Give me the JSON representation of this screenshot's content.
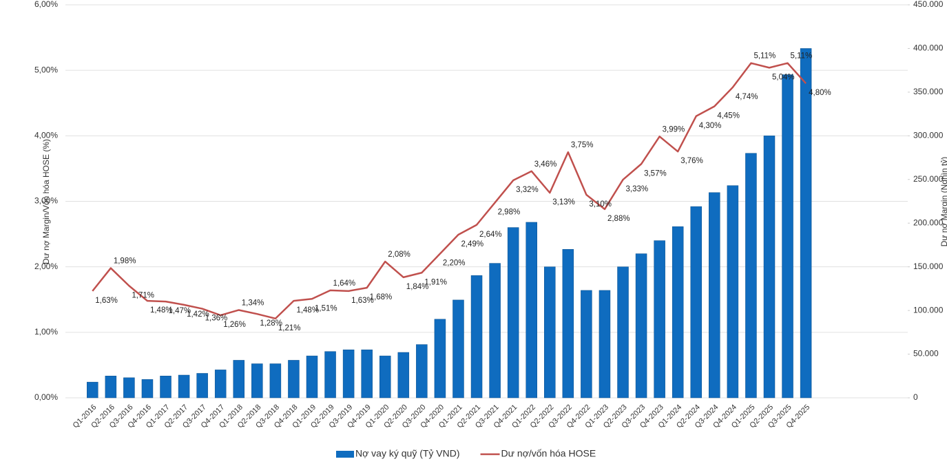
{
  "chart_data": {
    "type": "combo",
    "y_label": "Dư nợ Margin/Vốn hóa HOSE (%)",
    "y2_label": "Dư nợ Margin (Nghìn tỷ)",
    "categories": [
      "Q1-2016",
      "Q2-2016",
      "Q3-2016",
      "Q4-2016",
      "Q1-2017",
      "Q2-2017",
      "Q3-2017",
      "Q4-2017",
      "Q1-2018",
      "Q2-2018",
      "Q3-2018",
      "Q4-2018",
      "Q1-2019",
      "Q2-2019",
      "Q3-2019",
      "Q4-2019",
      "Q1-2020",
      "Q2-2020",
      "Q3-2020",
      "Q4-2020",
      "Q1-2021",
      "Q2-2021",
      "Q3-2021",
      "Q4-2021",
      "Q1-2022",
      "Q2-2022",
      "Q3-2022",
      "Q4-2022",
      "Q1-2023",
      "Q2-2023",
      "Q3-2023",
      "Q4-2023",
      "Q1-2024",
      "Q2-2024",
      "Q3-2024",
      "Q4-2024",
      "Q1-2025",
      "Q2-2025",
      "Q3-2025",
      "Q4-2025"
    ],
    "series": [
      {
        "name": "Nợ vay ký quỹ (Tỷ VND)",
        "type": "bar",
        "axis": "y2",
        "color": "#0f6cbf",
        "values": [
          18000,
          25000,
          23000,
          21000,
          25000,
          26000,
          28000,
          32000,
          43000,
          39000,
          39000,
          43000,
          48000,
          53000,
          55000,
          55000,
          48000,
          52000,
          61000,
          90000,
          112000,
          140000,
          154000,
          195000,
          201000,
          150000,
          170000,
          123000,
          123000,
          150000,
          165000,
          180000,
          196000,
          219000,
          235000,
          243000,
          280000,
          300000,
          370000,
          400000
        ]
      },
      {
        "name": "Dư nợ/vốn hóa HOSE",
        "type": "line",
        "axis": "y",
        "color": "#c0504d",
        "values": [
          1.63,
          1.98,
          1.71,
          1.48,
          1.47,
          1.42,
          1.36,
          1.26,
          1.34,
          1.28,
          1.21,
          1.48,
          1.51,
          1.64,
          1.63,
          1.68,
          2.08,
          1.84,
          1.91,
          2.2,
          2.49,
          2.64,
          2.98,
          3.32,
          3.46,
          3.13,
          3.75,
          3.1,
          2.88,
          3.33,
          3.57,
          3.99,
          3.76,
          4.3,
          4.45,
          4.74,
          5.11,
          5.04,
          5.11,
          4.8
        ],
        "value_labels": [
          "1,63%",
          "1,98%",
          "1,71%",
          "1,48%",
          "1,47%",
          "1,42%",
          "1,36%",
          "1,26%",
          "1,34%",
          "1,28%",
          "1,21%",
          "1,48%",
          "1,51%",
          "1,64%",
          "1,63%",
          "1,68%",
          "2,08%",
          "1,84%",
          "1,91%",
          "2,20%",
          "2,49%",
          "2,64%",
          "2,98%",
          "3,32%",
          "3,46%",
          "3,13%",
          "3,75%",
          "3,10%",
          "2,88%",
          "3,33%",
          "3,57%",
          "3,99%",
          "3,76%",
          "4,30%",
          "4,45%",
          "4,74%",
          "5,11%",
          "5,04%",
          "5,11%",
          "4,80%"
        ]
      }
    ],
    "ylim": [
      0,
      6
    ],
    "yticks": [
      {
        "value": 0,
        "label": "0,00%"
      },
      {
        "value": 1,
        "label": "1,00%"
      },
      {
        "value": 2,
        "label": "2,00%"
      },
      {
        "value": 3,
        "label": "3,00%"
      },
      {
        "value": 4,
        "label": "4,00%"
      },
      {
        "value": 5,
        "label": "5,00%"
      },
      {
        "value": 6,
        "label": "6,00%"
      }
    ],
    "y2lim": [
      0,
      450000
    ],
    "y2ticks": [
      0,
      {
        "value": 50000,
        "label": "50.000"
      },
      {
        "value": 100000,
        "label": "100.000"
      },
      {
        "value": 150000,
        "label": "150.000"
      },
      {
        "value": 200000,
        "label": "200.000"
      },
      {
        "value": 250000,
        "label": "250.000"
      },
      {
        "value": 300000,
        "label": "300.000"
      },
      {
        "value": 350000,
        "label": "350.000"
      },
      {
        "value": 400000,
        "label": "400.000"
      },
      {
        "value": 450000,
        "label": "450.000"
      }
    ],
    "grid": true,
    "legend": "bottom"
  }
}
